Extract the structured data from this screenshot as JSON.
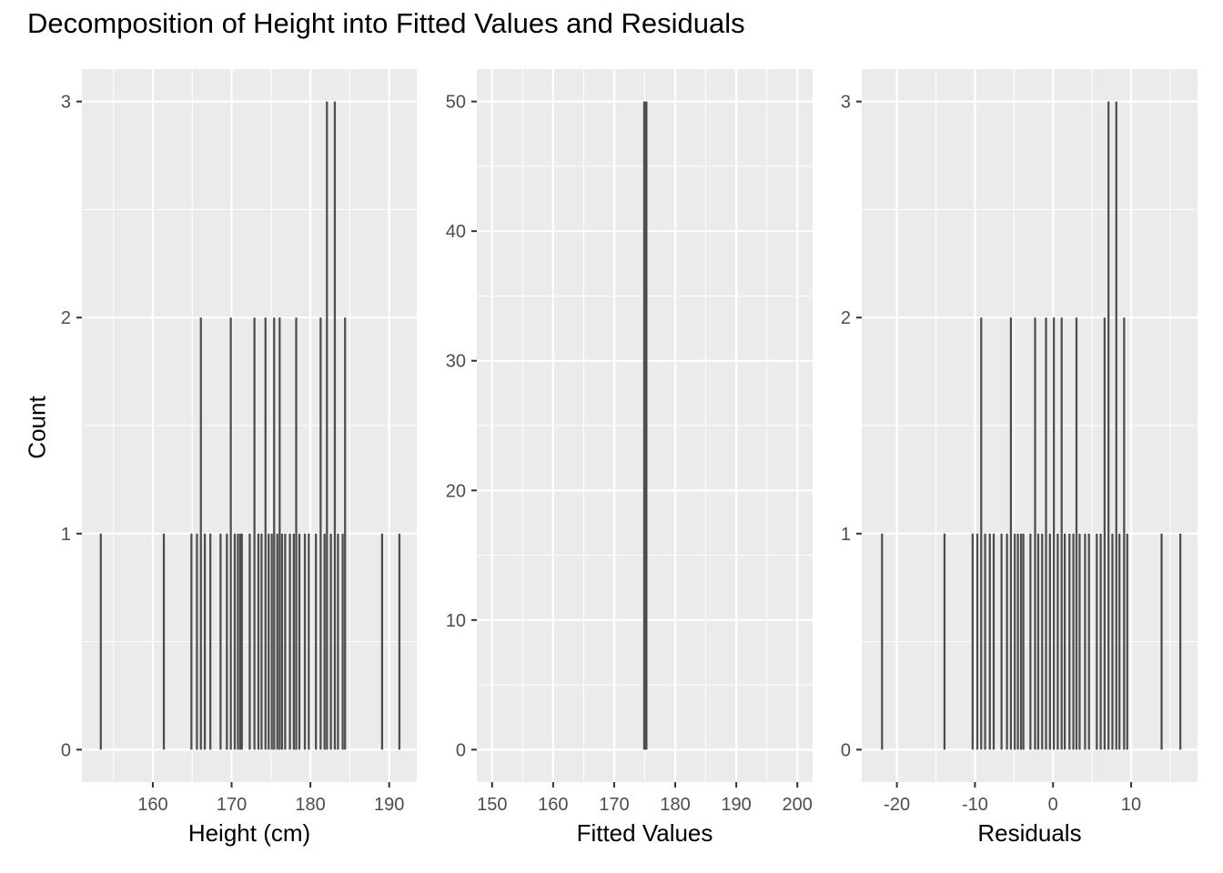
{
  "title": "Decomposition of Height into Fitted Values and Residuals",
  "ylabel": "Count",
  "colors": {
    "panel_bg": "#ebebeb",
    "grid": "#ffffff",
    "bar": "#4d4d4d",
    "tick_text": "#4d4d4d"
  },
  "chart_data": [
    {
      "type": "bar",
      "xlabel": "Height (cm)",
      "xlim": [
        151,
        193.5
      ],
      "ylim": [
        -0.15,
        3.15
      ],
      "xticks": [
        160,
        170,
        180,
        190
      ],
      "yticks": [
        0,
        1,
        2,
        3
      ],
      "bar_width": 0.26,
      "bars": [
        {
          "x": 153.4,
          "count": 1
        },
        {
          "x": 161.4,
          "count": 1
        },
        {
          "x": 164.9,
          "count": 1
        },
        {
          "x": 165.6,
          "count": 1
        },
        {
          "x": 166.1,
          "count": 2
        },
        {
          "x": 166.6,
          "count": 1
        },
        {
          "x": 167.3,
          "count": 1
        },
        {
          "x": 168.6,
          "count": 1
        },
        {
          "x": 169.4,
          "count": 1
        },
        {
          "x": 169.9,
          "count": 2
        },
        {
          "x": 170.4,
          "count": 1
        },
        {
          "x": 170.8,
          "count": 1
        },
        {
          "x": 171.1,
          "count": 1
        },
        {
          "x": 171.3,
          "count": 1
        },
        {
          "x": 172.3,
          "count": 1
        },
        {
          "x": 172.9,
          "count": 2
        },
        {
          "x": 173.4,
          "count": 1
        },
        {
          "x": 173.8,
          "count": 1
        },
        {
          "x": 174.3,
          "count": 2
        },
        {
          "x": 174.7,
          "count": 1
        },
        {
          "x": 175.1,
          "count": 1
        },
        {
          "x": 175.4,
          "count": 2
        },
        {
          "x": 175.8,
          "count": 1
        },
        {
          "x": 176.1,
          "count": 2
        },
        {
          "x": 176.4,
          "count": 1
        },
        {
          "x": 176.8,
          "count": 1
        },
        {
          "x": 177.4,
          "count": 1
        },
        {
          "x": 177.9,
          "count": 1
        },
        {
          "x": 178.2,
          "count": 2
        },
        {
          "x": 178.6,
          "count": 1
        },
        {
          "x": 179.3,
          "count": 1
        },
        {
          "x": 179.8,
          "count": 1
        },
        {
          "x": 180.7,
          "count": 1
        },
        {
          "x": 181.3,
          "count": 2
        },
        {
          "x": 181.8,
          "count": 1
        },
        {
          "x": 182.1,
          "count": 3
        },
        {
          "x": 182.6,
          "count": 1
        },
        {
          "x": 183.1,
          "count": 3
        },
        {
          "x": 183.5,
          "count": 1
        },
        {
          "x": 184.1,
          "count": 1
        },
        {
          "x": 184.4,
          "count": 2
        },
        {
          "x": 189.1,
          "count": 1
        },
        {
          "x": 191.3,
          "count": 1
        }
      ]
    },
    {
      "type": "bar",
      "xlabel": "Fitted Values",
      "xlim": [
        147.5,
        202.5
      ],
      "ylim": [
        -2.5,
        52.5
      ],
      "xticks": [
        150,
        160,
        170,
        180,
        190,
        200
      ],
      "yticks": [
        0,
        10,
        20,
        30,
        40,
        50
      ],
      "bar_width": 0.7,
      "bars": [
        {
          "x": 175.1,
          "count": 50
        }
      ]
    },
    {
      "type": "bar",
      "xlabel": "Residuals",
      "xlim": [
        -24.5,
        18.5
      ],
      "ylim": [
        -0.15,
        3.15
      ],
      "xticks": [
        -20,
        -10,
        0,
        10
      ],
      "yticks": [
        0,
        1,
        2,
        3
      ],
      "bar_width": 0.26,
      "bars": [
        {
          "x": -21.9,
          "count": 1
        },
        {
          "x": -13.9,
          "count": 1
        },
        {
          "x": -10.3,
          "count": 1
        },
        {
          "x": -9.7,
          "count": 1
        },
        {
          "x": -9.2,
          "count": 2
        },
        {
          "x": -8.7,
          "count": 1
        },
        {
          "x": -8.1,
          "count": 1
        },
        {
          "x": -7.6,
          "count": 1
        },
        {
          "x": -6.6,
          "count": 1
        },
        {
          "x": -5.9,
          "count": 1
        },
        {
          "x": -5.4,
          "count": 2
        },
        {
          "x": -4.9,
          "count": 1
        },
        {
          "x": -4.5,
          "count": 1
        },
        {
          "x": -4.1,
          "count": 1
        },
        {
          "x": -3.8,
          "count": 1
        },
        {
          "x": -2.9,
          "count": 1
        },
        {
          "x": -2.3,
          "count": 2
        },
        {
          "x": -1.9,
          "count": 1
        },
        {
          "x": -1.4,
          "count": 1
        },
        {
          "x": -0.9,
          "count": 2
        },
        {
          "x": -0.4,
          "count": 1
        },
        {
          "x": 0.1,
          "count": 2
        },
        {
          "x": 0.6,
          "count": 1
        },
        {
          "x": 1.1,
          "count": 2
        },
        {
          "x": 1.5,
          "count": 1
        },
        {
          "x": 2.1,
          "count": 1
        },
        {
          "x": 2.6,
          "count": 1
        },
        {
          "x": 3.0,
          "count": 2
        },
        {
          "x": 3.4,
          "count": 1
        },
        {
          "x": 4.1,
          "count": 1
        },
        {
          "x": 4.6,
          "count": 1
        },
        {
          "x": 5.6,
          "count": 1
        },
        {
          "x": 6.1,
          "count": 1
        },
        {
          "x": 6.6,
          "count": 2
        },
        {
          "x": 7.1,
          "count": 3
        },
        {
          "x": 7.6,
          "count": 1
        },
        {
          "x": 8.1,
          "count": 3
        },
        {
          "x": 8.5,
          "count": 1
        },
        {
          "x": 9.1,
          "count": 2
        },
        {
          "x": 9.5,
          "count": 1
        },
        {
          "x": 13.9,
          "count": 1
        },
        {
          "x": 16.3,
          "count": 1
        }
      ]
    }
  ]
}
